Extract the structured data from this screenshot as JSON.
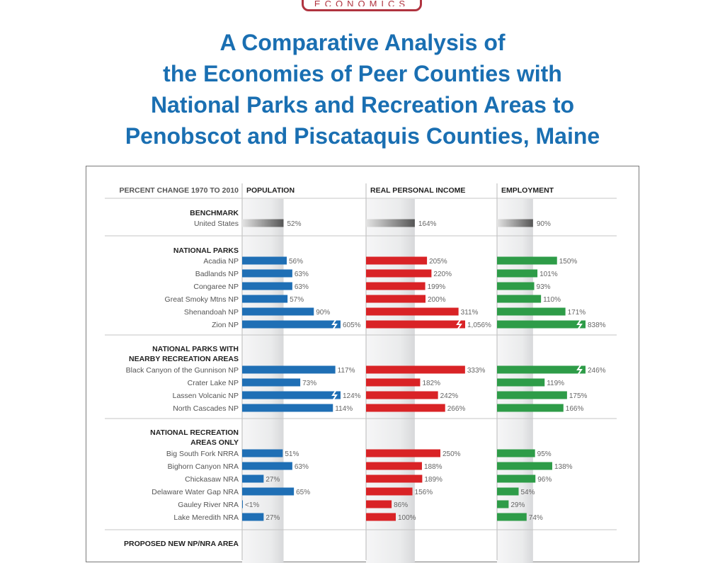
{
  "logo": {
    "text": "ECONOMICS"
  },
  "title_lines": [
    "A Comparative Analysis of",
    "the Economies of Peer Counties with",
    "National Parks and Recreation Areas to",
    "Penobscot and Piscataquis Counties, Maine"
  ],
  "colors": {
    "title": "#1a6fb2",
    "population": "#1f6fb5",
    "income": "#d92326",
    "employment": "#2e9c48",
    "benchmark": "#6b6b6b",
    "logo": "#b0333f"
  },
  "chart_data": {
    "type": "bar",
    "orientation": "horizontal",
    "title": "PERCENT CHANGE 1970 TO 2010",
    "columns": [
      {
        "key": "population",
        "label": "POPULATION"
      },
      {
        "key": "income",
        "label": "REAL PERSONAL INCOME"
      },
      {
        "key": "employment",
        "label": "EMPLOYMENT"
      }
    ],
    "groups": [
      {
        "heading": [
          "BENCHMARK"
        ],
        "benchmark": true,
        "rows": [
          {
            "name": "United States",
            "population": 52,
            "population_label": "52%",
            "income": 164,
            "income_label": "164%",
            "employment": 90,
            "employment_label": "90%"
          }
        ]
      },
      {
        "heading": [
          "NATIONAL PARKS"
        ],
        "rows": [
          {
            "name": "Acadia NP",
            "population": 56,
            "population_label": "56%",
            "income": 205,
            "income_label": "205%",
            "employment": 150,
            "employment_label": "150%"
          },
          {
            "name": "Badlands NP",
            "population": 63,
            "population_label": "63%",
            "income": 220,
            "income_label": "220%",
            "employment": 101,
            "employment_label": "101%"
          },
          {
            "name": "Congaree NP",
            "population": 63,
            "population_label": "63%",
            "income": 199,
            "income_label": "199%",
            "employment": 93,
            "employment_label": "93%"
          },
          {
            "name": "Great Smoky Mtns NP",
            "population": 57,
            "population_label": "57%",
            "income": 200,
            "income_label": "200%",
            "employment": 110,
            "employment_label": "110%"
          },
          {
            "name": "Shenandoah NP",
            "population": 90,
            "population_label": "90%",
            "income": 311,
            "income_label": "311%",
            "employment": 171,
            "employment_label": "171%"
          },
          {
            "name": "Zion NP",
            "population": 605,
            "population_label": "605%",
            "income": 1056,
            "income_label": "1,056%",
            "employment": 838,
            "employment_label": "838%",
            "truncated": true
          }
        ]
      },
      {
        "heading": [
          "NATIONAL PARKS WITH",
          "NEARBY RECREATION AREAS"
        ],
        "rows": [
          {
            "name": "Black Canyon of the Gunnison NP",
            "population": 117,
            "population_label": "117%",
            "income": 333,
            "income_label": "333%",
            "employment": 246,
            "employment_label": "246%"
          },
          {
            "name": "Crater Lake NP",
            "population": 73,
            "population_label": "73%",
            "income": 182,
            "income_label": "182%",
            "employment": 119,
            "employment_label": "119%"
          },
          {
            "name": "Lassen Volcanic NP",
            "population": 124,
            "population_label": "124%",
            "income": 242,
            "income_label": "242%",
            "employment": 175,
            "employment_label": "175%"
          },
          {
            "name": "North Cascades NP",
            "population": 114,
            "population_label": "114%",
            "income": 266,
            "income_label": "266%",
            "employment": 166,
            "employment_label": "166%"
          }
        ]
      },
      {
        "heading": [
          "NATIONAL RECREATION",
          "AREAS ONLY"
        ],
        "rows": [
          {
            "name": "Big South Fork NRRA",
            "population": 51,
            "population_label": "51%",
            "income": 250,
            "income_label": "250%",
            "employment": 95,
            "employment_label": "95%"
          },
          {
            "name": "Bighorn Canyon NRA",
            "population": 63,
            "population_label": "63%",
            "income": 188,
            "income_label": "188%",
            "employment": 138,
            "employment_label": "138%"
          },
          {
            "name": "Chickasaw NRA",
            "population": 27,
            "population_label": "27%",
            "income": 189,
            "income_label": "189%",
            "employment": 96,
            "employment_label": "96%"
          },
          {
            "name": "Delaware Water Gap NRA",
            "population": 65,
            "population_label": "65%",
            "income": 156,
            "income_label": "156%",
            "employment": 54,
            "employment_label": "54%"
          },
          {
            "name": "Gauley River NRA",
            "population": 0.5,
            "population_label": "<1%",
            "income": 86,
            "income_label": "86%",
            "employment": 29,
            "employment_label": "29%"
          },
          {
            "name": "Lake Meredith NRA",
            "population": 27,
            "population_label": "27%",
            "income": 100,
            "income_label": "100%",
            "employment": 74,
            "employment_label": "74%"
          }
        ]
      },
      {
        "heading": [
          "PROPOSED NEW NP/NRA AREA"
        ],
        "rows": []
      }
    ]
  }
}
